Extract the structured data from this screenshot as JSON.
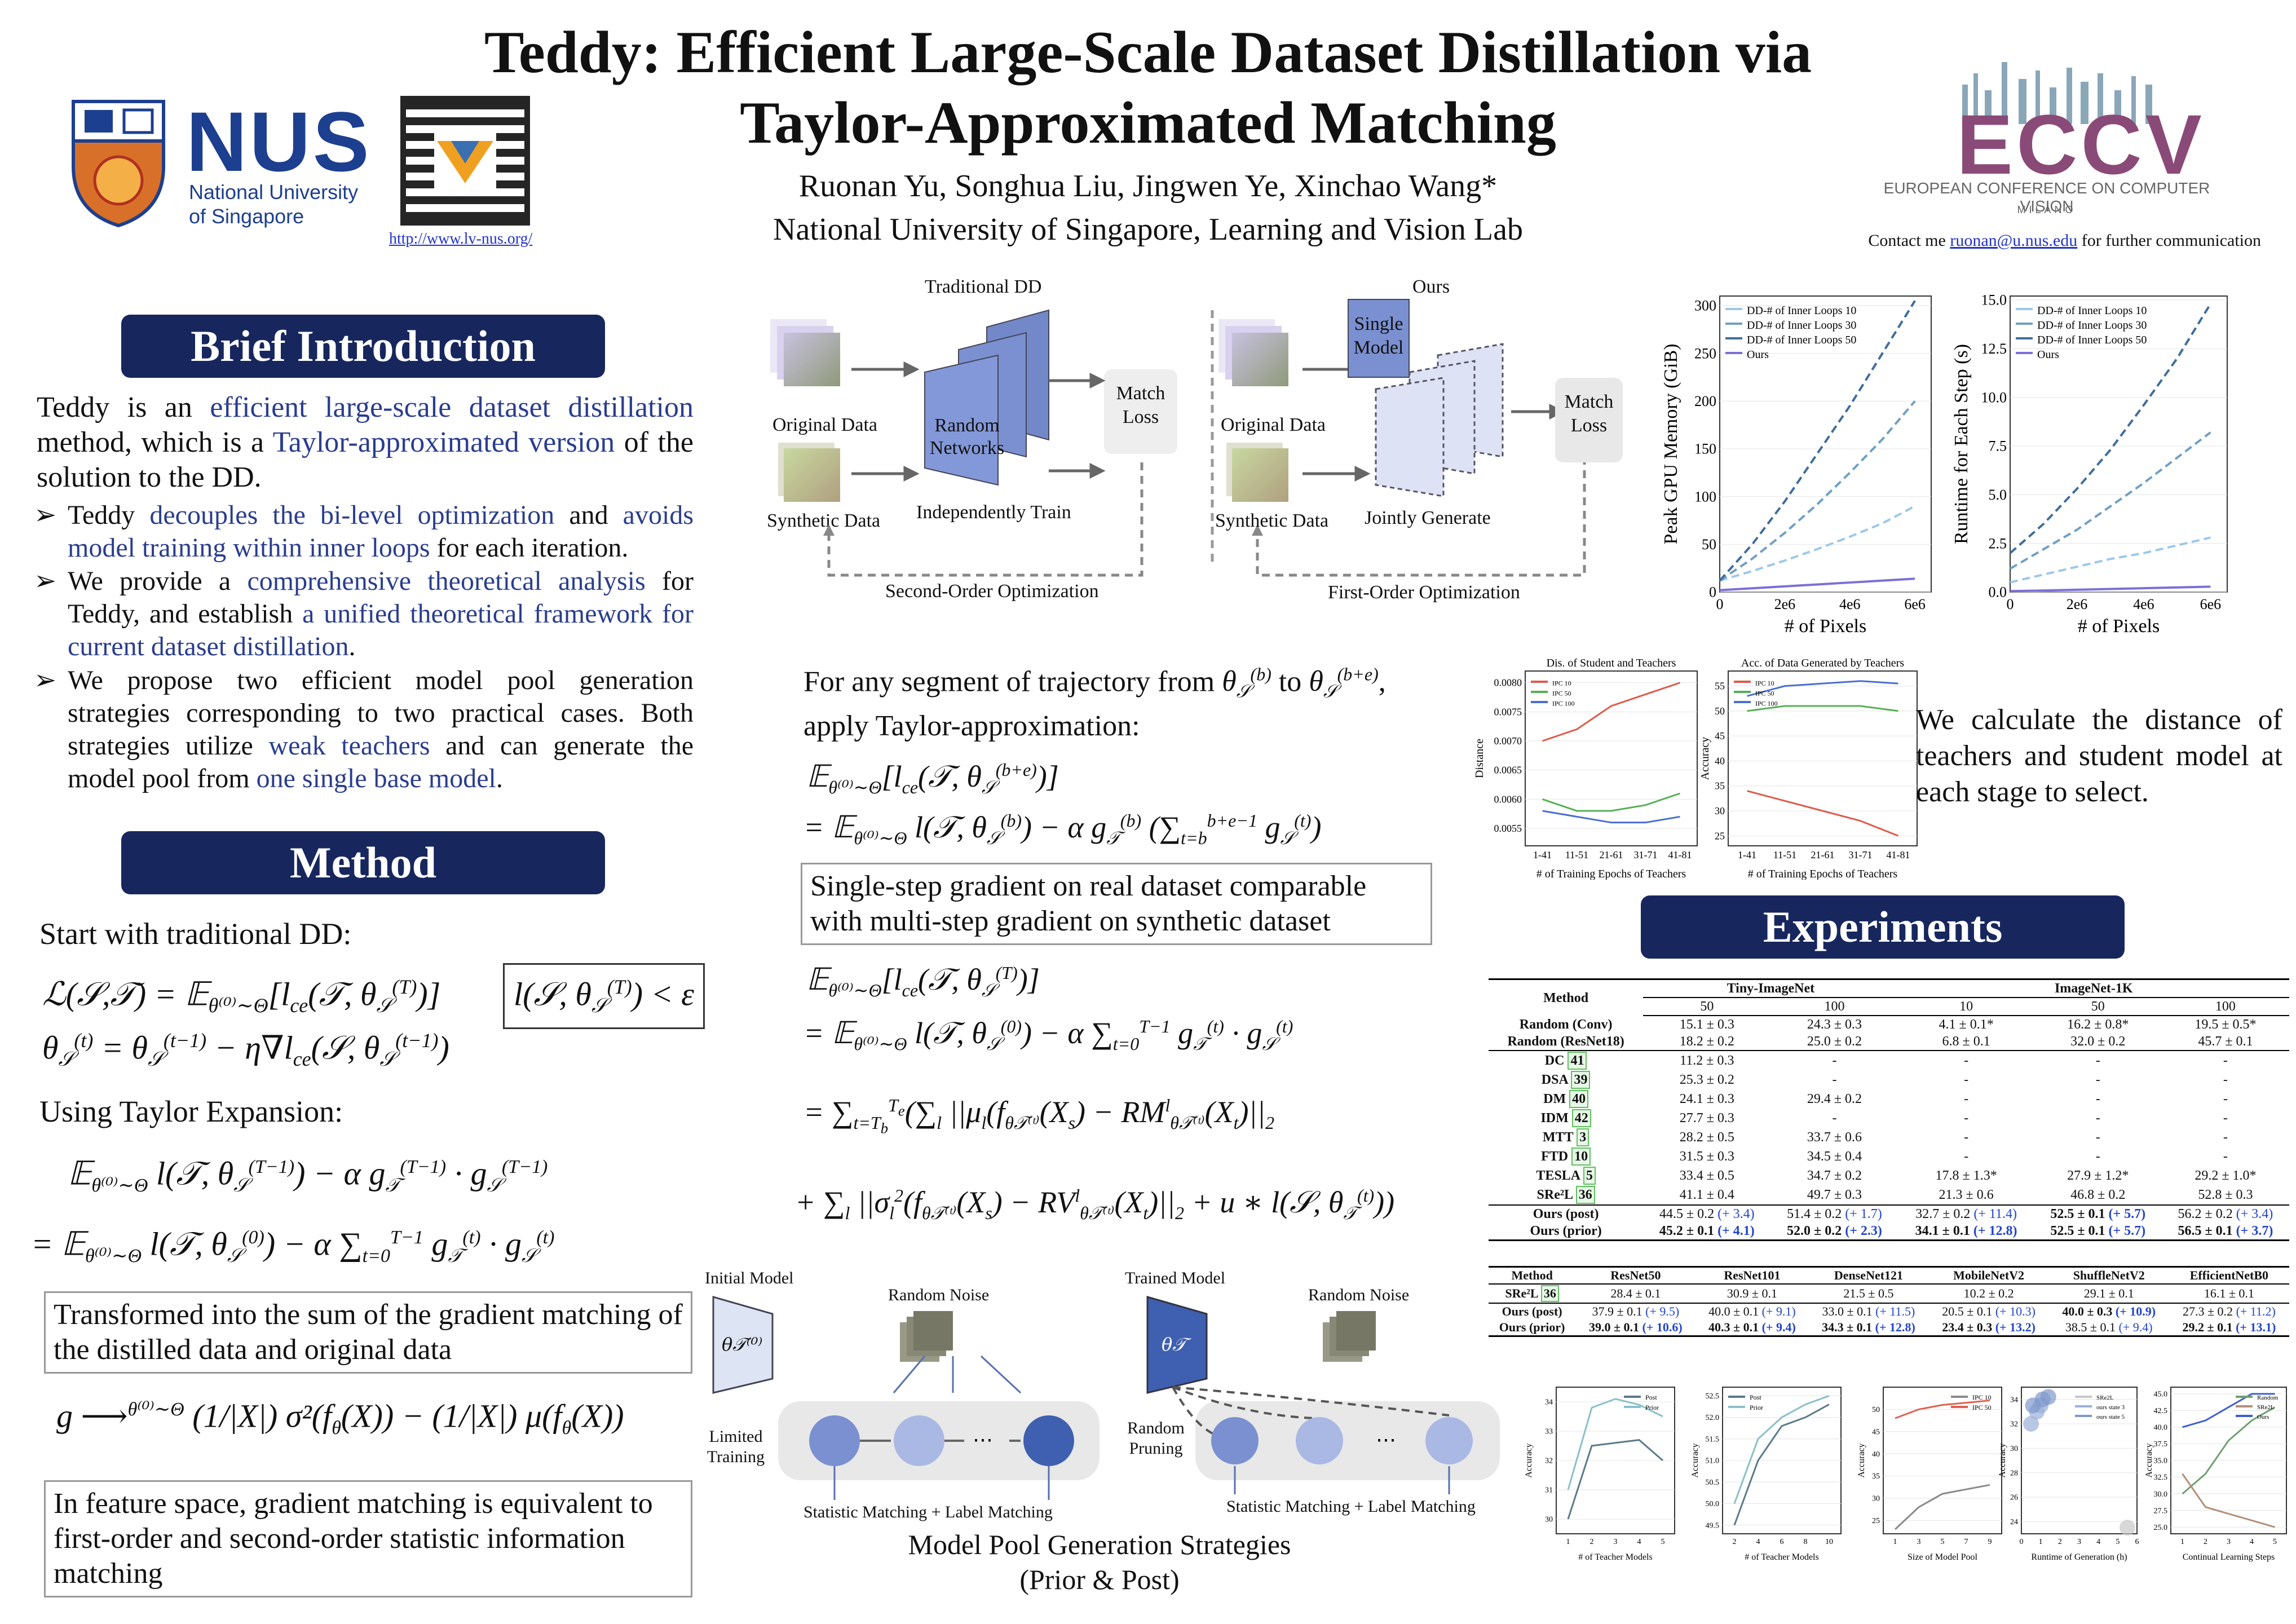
{
  "title_line1": "Teddy: Efficient Large-Scale Dataset Distillation via",
  "title_line2": "Taylor-Approximated Matching",
  "authors": "Ruonan Yu, Songhua Liu, Jingwen Ye, Xinchao Wang*",
  "affiliation": "National University of Singapore, Learning and Vision Lab",
  "nus": {
    "name": "NUS",
    "sub1": "National University",
    "sub2": "of Singapore",
    "link": "http://www.lv-nus.org/"
  },
  "eccv": {
    "name": "ECCV",
    "full": "EUROPEAN CONFERENCE ON COMPUTER VISION",
    "city": "MILANO",
    "year": "2024",
    "contact_pre": "Contact me ",
    "email": "ruonan@u.nus.edu",
    "contact_post": " for further communication"
  },
  "intro": {
    "heading": "Brief Introduction",
    "p_a": "Teddy is an ",
    "p_b": "efficient large-scale dataset distillation",
    "p_c": " method, which is a ",
    "p_d": "Taylor-approximated version",
    "p_e": " of the solution to the DD.",
    "b1_a": "Teddy ",
    "b1_b": "decouples the bi-level optimization",
    "b1_c": " and ",
    "b1_d": "avoids model training within inner loops",
    "b1_e": " for each iteration.",
    "b2_a": "We provide a ",
    "b2_b": "comprehensive theoretical analysis",
    "b2_c": " for Teddy, and establish ",
    "b2_d": "a unified theoretical framework for current dataset distillation",
    "b3_a": "We propose two efficient model pool generation strategies corresponding to two practical cases. Both strategies utilize ",
    "b3_b": "weak teachers",
    "b3_c": " and can generate the model pool from ",
    "b3_d": "one single base model",
    "b3_e": ".",
    "bullet": "➢"
  },
  "method": {
    "heading": "Method",
    "start": "Start with traditional DD:",
    "taylor": "Using Taylor Expansion:",
    "box1": "Transformed into the sum of the gradient matching of the distilled data and original data",
    "box2": "In feature space, gradient matching is equivalent to first-order and second-order statistic information matching"
  },
  "diagram": {
    "trad": "Traditional DD",
    "ours": "Ours",
    "orig": "Original Data",
    "syn": "Synthetic Data",
    "rand": "Random Networks",
    "indep": "Independently Train",
    "match": "Match Loss",
    "second": "Second-Order Optimization",
    "single": "Single Model",
    "jointly": "Jointly Generate",
    "first": "First-Order Optimization"
  },
  "middle": {
    "seg_a": "For any segment of trajectory from ",
    "seg_b": " to ",
    "seg_c": ",",
    "seg_d": "apply Taylor-approximation:",
    "box": "Single-step gradient on real dataset comparable with multi-step gradient on synthetic dataset"
  },
  "pool": {
    "init": "Initial Model",
    "noise": "Random Noise",
    "limited": "Limited Training",
    "sm": "Statistic Matching + Label Matching",
    "trained": "Trained Model",
    "noise2": "Random Noise",
    "pruning": "Random Pruning",
    "sm2": "Statistic Matching + Label Matching",
    "cap1": "Model Pool Generation Strategies",
    "cap2": "(Prior & Post)"
  },
  "right_text": "We calculate the distance of teachers and student model at each stage to select.",
  "experiments": {
    "heading": "Experiments"
  },
  "table1": {
    "h_method": "Method",
    "h_tiny": "Tiny-ImageNet",
    "h_in": "ImageNet-1K",
    "cols": [
      "50",
      "100",
      "10",
      "50",
      "100"
    ],
    "rows": [
      {
        "m": "Random (Conv)",
        "v": [
          "15.1 ± 0.3",
          "24.3 ± 0.3",
          "4.1 ± 0.1*",
          "16.2 ± 0.8*",
          "19.5 ± 0.5*"
        ]
      },
      {
        "m": "Random (ResNet18)",
        "v": [
          "18.2 ± 0.2",
          "25.0 ± 0.2",
          "6.8 ± 0.1",
          "32.0 ± 0.2",
          "45.7 ± 0.1"
        ]
      },
      {
        "m": "DC",
        "r": "41",
        "v": [
          "11.2 ± 0.3",
          "-",
          "-",
          "-",
          "-"
        ]
      },
      {
        "m": "DSA",
        "r": "39",
        "v": [
          "25.3 ± 0.2",
          "-",
          "-",
          "-",
          "-"
        ]
      },
      {
        "m": "DM",
        "r": "40",
        "v": [
          "24.1 ± 0.3",
          "29.4 ± 0.2",
          "-",
          "-",
          "-"
        ]
      },
      {
        "m": "IDM",
        "r": "42",
        "v": [
          "27.7 ± 0.3",
          "-",
          "-",
          "-",
          "-"
        ]
      },
      {
        "m": "MTT",
        "r": "3",
        "v": [
          "28.2 ± 0.5",
          "33.7 ± 0.6",
          "-",
          "-",
          "-"
        ]
      },
      {
        "m": "FTD",
        "r": "10",
        "v": [
          "31.5 ± 0.3",
          "34.5 ± 0.4",
          "-",
          "-",
          "-"
        ]
      },
      {
        "m": "TESLA",
        "r": "5",
        "v": [
          "33.4 ± 0.5",
          "34.7 ± 0.2",
          "17.8 ± 1.3*",
          "27.9 ± 1.2*",
          "29.2 ± 1.0*"
        ]
      },
      {
        "m": "SRe²L",
        "r": "36",
        "v": [
          "41.1 ± 0.4",
          "49.7 ± 0.3",
          "21.3 ± 0.6",
          "46.8 ± 0.2",
          "52.8 ± 0.3"
        ]
      }
    ],
    "ours": [
      {
        "m": "Ours (post)",
        "v": [
          "44.5 ± 0.2",
          "51.4 ± 0.2",
          "32.7 ± 0.2",
          "52.5 ± 0.1",
          "56.2 ± 0.2"
        ],
        "d": [
          "(+ 3.4)",
          "(+ 1.7)",
          "(+ 11.4)",
          "(+ 5.7)",
          "(+ 3.4)"
        ]
      },
      {
        "m": "Ours (prior)",
        "v": [
          "45.2 ± 0.1",
          "52.0 ± 0.2",
          "34.1 ± 0.1",
          "52.5 ± 0.1",
          "56.5 ± 0.1"
        ],
        "d": [
          "(+ 4.1)",
          "(+ 2.3)",
          "(+ 12.8)",
          "(+ 5.7)",
          "(+ 3.7)"
        ]
      }
    ]
  },
  "table2": {
    "cols": [
      "Method",
      "ResNet50",
      "ResNet101",
      "DenseNet121",
      "MobileNetV2",
      "ShuffleNetV2",
      "EfficientNetB0"
    ],
    "sre": {
      "m": "SRe²L",
      "r": "36",
      "v": [
        "28.4 ± 0.1",
        "30.9 ± 0.1",
        "21.5 ± 0.5",
        "10.2 ± 0.2",
        "29.1 ± 0.1",
        "16.1 ± 0.1"
      ]
    },
    "post": {
      "m": "Ours (post)",
      "v": [
        "37.9 ± 0.1",
        "40.0 ± 0.1",
        "33.0 ± 0.1",
        "20.5 ± 0.1",
        "40.0 ± 0.3",
        "27.3 ± 0.2"
      ],
      "d": [
        "(+ 9.5)",
        "(+ 9.1)",
        "(+ 11.5)",
        "(+ 10.3)",
        "(+ 10.9)",
        "(+ 11.2)"
      ]
    },
    "prior": {
      "m": "Ours (prior)",
      "v": [
        "39.0 ± 0.1",
        "40.3 ± 0.1",
        "34.3 ± 0.1",
        "23.4 ± 0.3",
        "38.5 ± 0.1",
        "29.2 ± 0.1"
      ],
      "d": [
        "(+ 10.6)",
        "(+ 9.4)",
        "(+ 12.8)",
        "(+ 13.2)",
        "(+ 9.4)",
        "(+ 13.1)"
      ]
    }
  },
  "chart_data": [
    {
      "type": "line",
      "ylabel": "Peak GPU Memory (GiB)",
      "xlabel": "# of Pixels",
      "xticks": [
        "0",
        "2e6",
        "4e6",
        "6e6"
      ],
      "yticks": [
        "0",
        "50",
        "100",
        "150",
        "200",
        "250",
        "300"
      ],
      "xlim": [
        0,
        6500000
      ],
      "ylim": [
        0,
        310
      ],
      "series": [
        {
          "name": "DD-# of Inner Loops 10",
          "color": "#9cc8e8",
          "x": [
            0,
            1000000,
            2000000,
            3000000,
            4000000,
            5000000,
            6000000
          ],
          "y": [
            12,
            22,
            33,
            45,
            58,
            72,
            90
          ]
        },
        {
          "name": "DD-# of Inner Loops 30",
          "color": "#6f9fc4",
          "x": [
            0,
            1000000,
            2000000,
            3000000,
            4000000,
            5000000,
            6000000
          ],
          "y": [
            12,
            35,
            62,
            92,
            125,
            160,
            200
          ]
        },
        {
          "name": "DD-# of Inner Loops 50",
          "color": "#3f6d9c",
          "x": [
            0,
            1000000,
            2000000,
            3000000,
            4000000,
            5000000,
            6000000
          ],
          "y": [
            12,
            50,
            95,
            145,
            195,
            250,
            305
          ]
        },
        {
          "name": "Ours",
          "color": "#7b6fd8",
          "x": [
            0,
            1000000,
            2000000,
            3000000,
            4000000,
            5000000,
            6000000
          ],
          "y": [
            2,
            4,
            6,
            8,
            10,
            12,
            14
          ]
        }
      ]
    },
    {
      "type": "line",
      "ylabel": "Runtime for Each Step (s)",
      "xlabel": "# of Pixels",
      "xticks": [
        "0",
        "2e6",
        "4e6",
        "6e6"
      ],
      "yticks": [
        "0.0",
        "2.5",
        "5.0",
        "7.5",
        "10.0",
        "12.5",
        "15.0"
      ],
      "xlim": [
        0,
        6500000
      ],
      "ylim": [
        0,
        15.2
      ],
      "series": [
        {
          "name": "DD-# of Inner Loops 10",
          "color": "#9cc8e8",
          "x": [
            0,
            1000000,
            2000000,
            3000000,
            4000000,
            5000000,
            6000000
          ],
          "y": [
            0.5,
            0.9,
            1.3,
            1.7,
            2.0,
            2.4,
            2.8
          ]
        },
        {
          "name": "DD-# of Inner Loops 30",
          "color": "#6f9fc4",
          "x": [
            0,
            1000000,
            2000000,
            3000000,
            4000000,
            5000000,
            6000000
          ],
          "y": [
            1.2,
            2.2,
            3.2,
            4.4,
            5.6,
            6.9,
            8.2
          ]
        },
        {
          "name": "DD-# of Inner Loops 50",
          "color": "#3f6d9c",
          "x": [
            0,
            1000000,
            2000000,
            3000000,
            4000000,
            5000000,
            6000000
          ],
          "y": [
            2.0,
            3.5,
            5.3,
            7.3,
            9.6,
            12.0,
            14.8
          ]
        },
        {
          "name": "Ours",
          "color": "#7b6fd8",
          "x": [
            0,
            1000000,
            2000000,
            3000000,
            4000000,
            5000000,
            6000000
          ],
          "y": [
            0.05,
            0.08,
            0.12,
            0.16,
            0.2,
            0.24,
            0.28
          ]
        }
      ]
    },
    {
      "type": "line",
      "title": "Dis. of Student and Teachers",
      "ylabel": "Distance",
      "xlabel": "# of Training Epochs of Teachers",
      "categories": [
        "1-41",
        "11-51",
        "21-61",
        "31-71",
        "41-81"
      ],
      "yticks": [
        "0.0055",
        "0.0060",
        "0.0065",
        "0.0070",
        "0.0075",
        "0.0080"
      ],
      "ylim": [
        0.0052,
        0.0082
      ],
      "series": [
        {
          "name": "IPC 10",
          "color": "#e05a4a",
          "values": [
            0.007,
            0.0072,
            0.0076,
            0.0078,
            0.008
          ]
        },
        {
          "name": "IPC 50",
          "color": "#55b055",
          "values": [
            0.006,
            0.0058,
            0.0058,
            0.0059,
            0.0061
          ]
        },
        {
          "name": "IPC 100",
          "color": "#4a6ed0",
          "values": [
            0.0058,
            0.0057,
            0.0056,
            0.0056,
            0.0057
          ]
        }
      ]
    },
    {
      "type": "line",
      "title": "Acc. of Data Generated by Teachers",
      "ylabel": "Accuracy",
      "xlabel": "# of Training Epochs of Teachers",
      "categories": [
        "1-41",
        "11-51",
        "21-61",
        "31-71",
        "41-81"
      ],
      "yticks": [
        "25",
        "30",
        "35",
        "40",
        "45",
        "50",
        "55"
      ],
      "ylim": [
        23,
        58
      ],
      "series": [
        {
          "name": "IPC 10",
          "color": "#e05a4a",
          "values": [
            34,
            32,
            30,
            28,
            25
          ]
        },
        {
          "name": "IPC 50",
          "color": "#55b055",
          "values": [
            50,
            51,
            51,
            51,
            50
          ]
        },
        {
          "name": "IPC 100",
          "color": "#4a6ed0",
          "values": [
            53,
            55,
            55.5,
            56,
            55.5
          ]
        }
      ]
    },
    {
      "type": "line",
      "xlabel": "# of Teacher Models",
      "ylabel": "Accuracy",
      "categories": [
        "1",
        "2",
        "3",
        "4",
        "5"
      ],
      "yticks": [
        "30",
        "31",
        "32",
        "33",
        "34"
      ],
      "ylim": [
        29.5,
        34.5
      ],
      "series": [
        {
          "name": "Post",
          "color": "#5a7a8a",
          "values": [
            30,
            32.5,
            32.6,
            32.7,
            32.0
          ]
        },
        {
          "name": "Prior",
          "color": "#8ac0c8",
          "values": [
            31,
            33.8,
            34.1,
            33.9,
            33.5
          ]
        }
      ]
    },
    {
      "type": "line",
      "xlabel": "# of Teacher Models",
      "ylabel": "Accuracy",
      "categories": [
        "2",
        "4",
        "6",
        "8",
        "10"
      ],
      "yticks": [
        "49.5",
        "50.0",
        "50.5",
        "51.0",
        "51.5",
        "52.0",
        "52.5"
      ],
      "ylim": [
        49.3,
        52.7
      ],
      "series": [
        {
          "name": "Post",
          "color": "#5a7a8a",
          "values": [
            49.5,
            51.0,
            51.8,
            52.0,
            52.3
          ]
        },
        {
          "name": "Prior",
          "color": "#8ac0c8",
          "values": [
            50.0,
            51.5,
            52.0,
            52.3,
            52.5
          ]
        }
      ]
    },
    {
      "type": "line",
      "xlabel": "Size of Model Pool",
      "ylabel": "Accuracy",
      "categories": [
        "1",
        "3",
        "5",
        "7",
        "9"
      ],
      "yticks": [
        "25",
        "30",
        "35",
        "40",
        "45",
        "50"
      ],
      "ylim": [
        22,
        55
      ],
      "series": [
        {
          "name": "IPC 10",
          "color": "#8a8a8a",
          "values": [
            23,
            28,
            31,
            32,
            33
          ]
        },
        {
          "name": "IPC 50",
          "color": "#e06050",
          "values": [
            48,
            50,
            51,
            51.5,
            52
          ]
        }
      ]
    },
    {
      "type": "scatter",
      "xlabel": "Runtime of Generation (h)",
      "ylabel": "Accuracy",
      "xticks": [
        "0",
        "1",
        "2",
        "3",
        "4",
        "5",
        "6"
      ],
      "yticks": [
        "24",
        "26",
        "28",
        "30",
        "32",
        "34"
      ],
      "ylim": [
        23,
        35
      ],
      "series": [
        {
          "name": "SRe2L",
          "color": "#c8c8c8",
          "points": [
            [
              5.5,
              23.5
            ]
          ]
        },
        {
          "name": "ours state 3",
          "color": "#9ab0d8",
          "points": [
            [
              0.5,
              32
            ],
            [
              0.8,
              33
            ],
            [
              1.0,
              33.5
            ]
          ]
        },
        {
          "name": "ours state 5",
          "color": "#7f98cc",
          "points": [
            [
              0.6,
              33.5
            ],
            [
              1.1,
              34
            ],
            [
              1.4,
              34.2
            ]
          ]
        }
      ]
    },
    {
      "type": "line",
      "xlabel": "Continual Learning Steps",
      "ylabel": "Accuracy",
      "categories": [
        "1",
        "2",
        "3",
        "4",
        "5"
      ],
      "yticks": [
        "25.0",
        "27.5",
        "30.0",
        "32.5",
        "35.0",
        "37.5",
        "40.0",
        "42.5",
        "45.0"
      ],
      "ylim": [
        24,
        46
      ],
      "series": [
        {
          "name": "Random",
          "color": "#6fa070",
          "values": [
            30,
            33,
            38,
            41,
            43
          ]
        },
        {
          "name": "SRe2L",
          "color": "#b09078",
          "values": [
            33,
            28,
            27,
            26,
            25
          ]
        },
        {
          "name": "Ours",
          "color": "#3f5fd0",
          "values": [
            40,
            41,
            43,
            45,
            45
          ]
        }
      ]
    }
  ]
}
